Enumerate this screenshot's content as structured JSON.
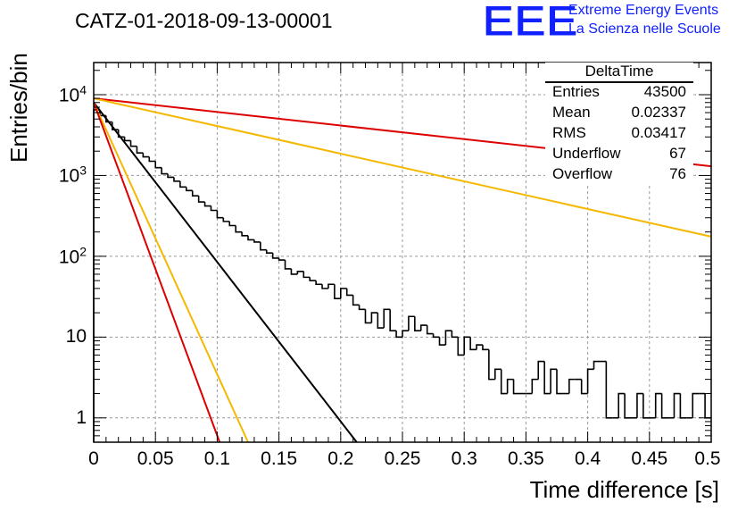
{
  "title": "CATZ-01-2018-09-13-00001",
  "logo": {
    "mark": "EEE",
    "line1": "Extreme Energy Events",
    "line2": "La Scienza nelle Scuole",
    "color": "#1020ff"
  },
  "stats_box": {
    "title": "DeltaTime",
    "rows": [
      {
        "key": "Entries",
        "value": "43500"
      },
      {
        "key": "Mean",
        "value": "0.02337"
      },
      {
        "key": "RMS",
        "value": "0.03417"
      },
      {
        "key": "Underflow",
        "value": "67"
      },
      {
        "key": "Overflow",
        "value": "76"
      }
    ]
  },
  "chart_data": {
    "type": "histogram",
    "xlabel": "Time difference [s]",
    "ylabel": "Entries/bin",
    "xlim": [
      0,
      0.5
    ],
    "ylim": [
      0.5,
      25000
    ],
    "yscale": "log",
    "grid": true,
    "x_ticks": [
      "0",
      "0.05",
      "0.1",
      "0.15",
      "0.2",
      "0.25",
      "0.3",
      "0.35",
      "0.4",
      "0.45",
      "0.5"
    ],
    "y_ticks": [
      {
        "value": 1,
        "label": "1",
        "sup": ""
      },
      {
        "value": 10,
        "label": "10",
        "sup": ""
      },
      {
        "value": 100,
        "label": "10",
        "sup": "2"
      },
      {
        "value": 1000,
        "label": "10",
        "sup": "3"
      },
      {
        "value": 10000,
        "label": "10",
        "sup": "4"
      }
    ],
    "bin_width": 0.005,
    "histogram": [
      6500,
      5500,
      4600,
      3700,
      3000,
      2700,
      2300,
      1900,
      1700,
      1500,
      1250,
      1050,
      950,
      850,
      720,
      650,
      560,
      470,
      420,
      370,
      300,
      270,
      240,
      200,
      180,
      160,
      150,
      120,
      110,
      95,
      90,
      70,
      60,
      65,
      55,
      50,
      45,
      40,
      45,
      30,
      40,
      33,
      25,
      22,
      15,
      20,
      13,
      22,
      12,
      10,
      12,
      18,
      12,
      14,
      11,
      10,
      8,
      12,
      10,
      6,
      10,
      7,
      8,
      7,
      3,
      4,
      2,
      3,
      2,
      2,
      2,
      3,
      5,
      2,
      4,
      2,
      2,
      3,
      3,
      2,
      4,
      5,
      5,
      1,
      1,
      2,
      1,
      1,
      2,
      1,
      1,
      2,
      1,
      1,
      2,
      1,
      1,
      2,
      2,
      1
    ],
    "fit_lines": [
      {
        "color": "#dd0000",
        "x": [
          0,
          0.5
        ],
        "y": [
          9000,
          1300
        ]
      },
      {
        "color": "#f5b800",
        "x": [
          0,
          0.5
        ],
        "y": [
          9000,
          175
        ]
      },
      {
        "color": "#000000",
        "x": [
          0,
          0.213
        ],
        "y": [
          8000,
          0.5
        ]
      },
      {
        "color": "#f5b800",
        "x": [
          0,
          0.125
        ],
        "y": [
          8000,
          0.5
        ]
      },
      {
        "color": "#dd0000",
        "x": [
          0,
          0.102
        ],
        "y": [
          8000,
          0.5
        ]
      }
    ]
  }
}
